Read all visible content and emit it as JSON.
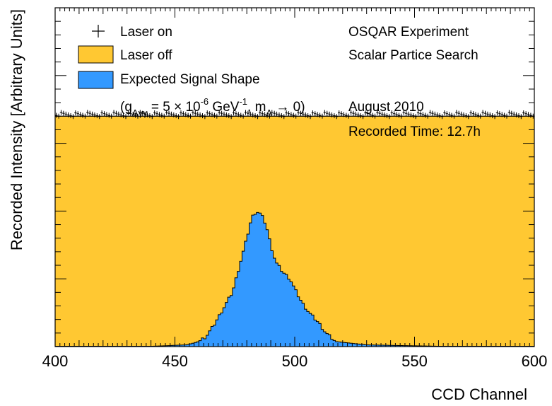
{
  "chart_data": {
    "type": "area",
    "xlabel": "CCD Channel",
    "ylabel": "Recorded Intensity [Arbitrary Units]",
    "xlim": [
      400,
      600
    ],
    "ylim": [
      0,
      100
    ],
    "xticks": [
      "400",
      "450",
      "500",
      "550",
      "600"
    ],
    "grid": false,
    "legend_position": "top-left",
    "legend": [
      {
        "label": "Laser on",
        "style": "marker"
      },
      {
        "label": "Laser off",
        "style": "fill",
        "color": "#ffc832"
      },
      {
        "label": "Expected Signal Shape",
        "style": "fill",
        "color": "#3399ff"
      },
      {
        "label": "(g",
        "sub": "Aγγ",
        "mid": " = 5 × 10",
        "sup": "-6",
        "mid2": " GeV",
        "sup2": "-1",
        "mid3": ", m",
        "sub2": "A",
        "tail": " → 0)"
      }
    ],
    "annotations": [
      "OSQAR Experiment",
      "Scalar Partice Search",
      "August 2010",
      "Recorded Time: 12.7h"
    ],
    "series": [
      {
        "name": "Laser off",
        "color": "#ffc832",
        "baseline_level": 68
      },
      {
        "name": "Laser on",
        "level": 68.5,
        "noise": 0.6
      },
      {
        "name": "Expected Signal Shape",
        "color": "#3399ff",
        "x": [
          440,
          455,
          460,
          463,
          466,
          470,
          474,
          477,
          480,
          482,
          484,
          486,
          488,
          490,
          492,
          495,
          498,
          500,
          503,
          506,
          510,
          513,
          517,
          530,
          560
        ],
        "values": [
          0.1,
          0.5,
          1.5,
          3,
          6,
          11,
          16,
          24,
          32,
          38,
          40,
          39,
          36,
          30,
          25,
          22,
          20,
          17,
          13,
          10,
          7,
          4,
          1.5,
          0.5,
          0.1
        ]
      }
    ]
  }
}
